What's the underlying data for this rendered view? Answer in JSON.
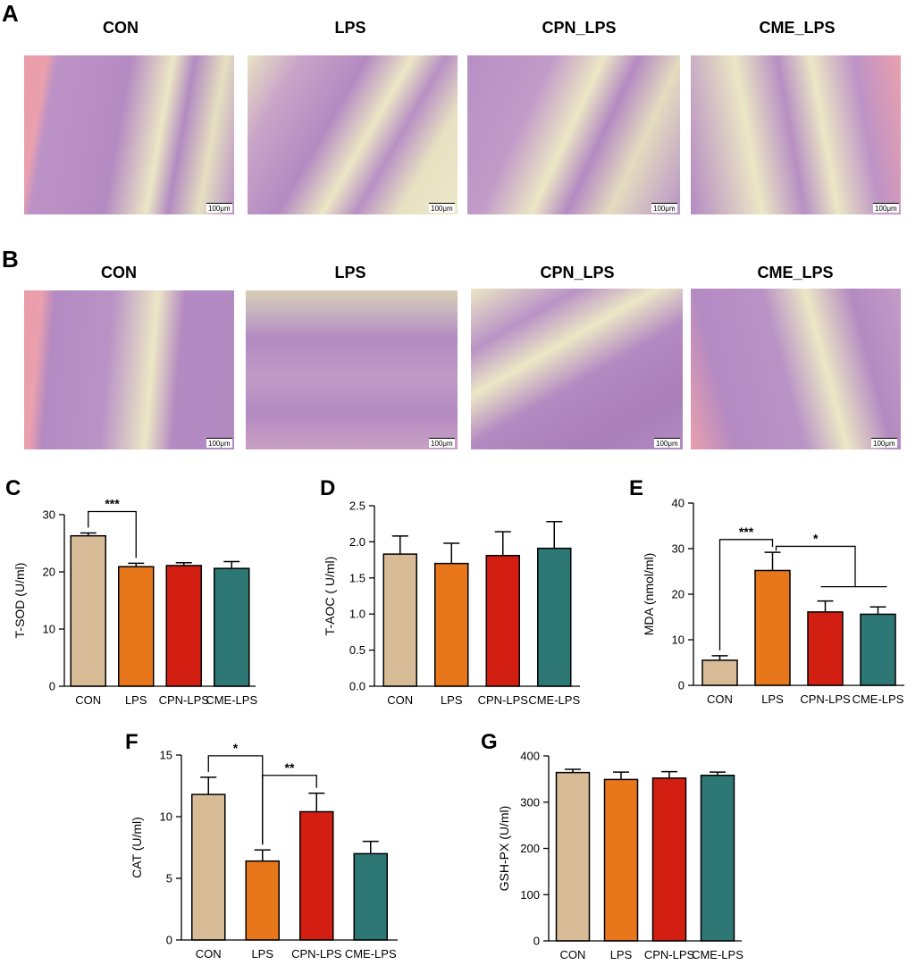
{
  "panels": {
    "A": {
      "label": "A",
      "groups": [
        "CON",
        "LPS",
        "CPN_LPS",
        "CME_LPS"
      ],
      "scale": "100μm"
    },
    "B": {
      "label": "B",
      "groups": [
        "CON",
        "LPS",
        "CPN_LPS",
        "CME_LPS"
      ],
      "scale": "100μm"
    }
  },
  "colors": {
    "CON": "#d7bc97",
    "LPS": "#e8771b",
    "CPN-LPS": "#d21f12",
    "CME-LPS": "#2d7774",
    "tissue": "#b88fc4",
    "lumen": "#ece7c5",
    "muscle": "#eaa0ad"
  },
  "chart_data": [
    {
      "id": "C",
      "type": "bar",
      "panel_label": "C",
      "categories": [
        "CON",
        "LPS",
        "CPN-LPS",
        "CME-LPS"
      ],
      "values": [
        26.3,
        20.9,
        21.1,
        20.6
      ],
      "errors": [
        0.5,
        0.6,
        0.5,
        1.2
      ],
      "ylabel": "T-SOD (U/ml)",
      "ylim": [
        0,
        30
      ],
      "ticks": [
        "0",
        "10",
        "20",
        "30"
      ],
      "significance": [
        {
          "from": 0,
          "to": 1,
          "label": "***"
        }
      ]
    },
    {
      "id": "D",
      "type": "bar",
      "panel_label": "D",
      "categories": [
        "CON",
        "LPS",
        "CPN-LPS",
        "CME-LPS"
      ],
      "values": [
        1.83,
        1.7,
        1.81,
        1.91
      ],
      "errors": [
        0.25,
        0.28,
        0.33,
        0.37
      ],
      "ylabel": "T-AOC ( U/ml)",
      "ylim": [
        0,
        2.5
      ],
      "ticks": [
        "0.0",
        "0.5",
        "1.0",
        "1.5",
        "2.0",
        "2.5"
      ],
      "significance": []
    },
    {
      "id": "E",
      "type": "bar",
      "panel_label": "E",
      "categories": [
        "CON",
        "LPS",
        "CPN-LPS",
        "CME-LPS"
      ],
      "values": [
        5.5,
        25.2,
        16.1,
        15.6
      ],
      "errors": [
        1.0,
        4.0,
        2.4,
        1.6
      ],
      "ylabel": "MDA (nmol/ml)",
      "ylim": [
        0,
        40
      ],
      "ticks": [
        "0",
        "10",
        "20",
        "30",
        "40"
      ],
      "significance": [
        {
          "from": 0,
          "to": 1,
          "label": "***"
        },
        {
          "from": 1,
          "to": "2-3",
          "label": "*"
        }
      ]
    },
    {
      "id": "F",
      "type": "bar",
      "panel_label": "F",
      "categories": [
        "CON",
        "LPS",
        "CPN-LPS",
        "CME-LPS"
      ],
      "values": [
        11.8,
        6.4,
        10.4,
        7.0
      ],
      "errors": [
        1.4,
        0.9,
        1.5,
        1.0
      ],
      "ylabel": "CAT (U/ml)",
      "ylim": [
        0,
        15
      ],
      "ticks": [
        "0",
        "5",
        "10",
        "15"
      ],
      "significance": [
        {
          "from": 0,
          "to": 1,
          "label": "*"
        },
        {
          "from": 1,
          "to": 2,
          "label": "**"
        }
      ]
    },
    {
      "id": "G",
      "type": "bar",
      "panel_label": "G",
      "categories": [
        "CON",
        "LPS",
        "CPN-LPS",
        "CME-LPS"
      ],
      "values": [
        364,
        349,
        352,
        358
      ],
      "errors": [
        7,
        16,
        14,
        7
      ],
      "ylabel": "GSH-PX (U/ml)",
      "ylim": [
        0,
        400
      ],
      "ticks": [
        "0",
        "100",
        "200",
        "300",
        "400"
      ],
      "significance": []
    }
  ]
}
